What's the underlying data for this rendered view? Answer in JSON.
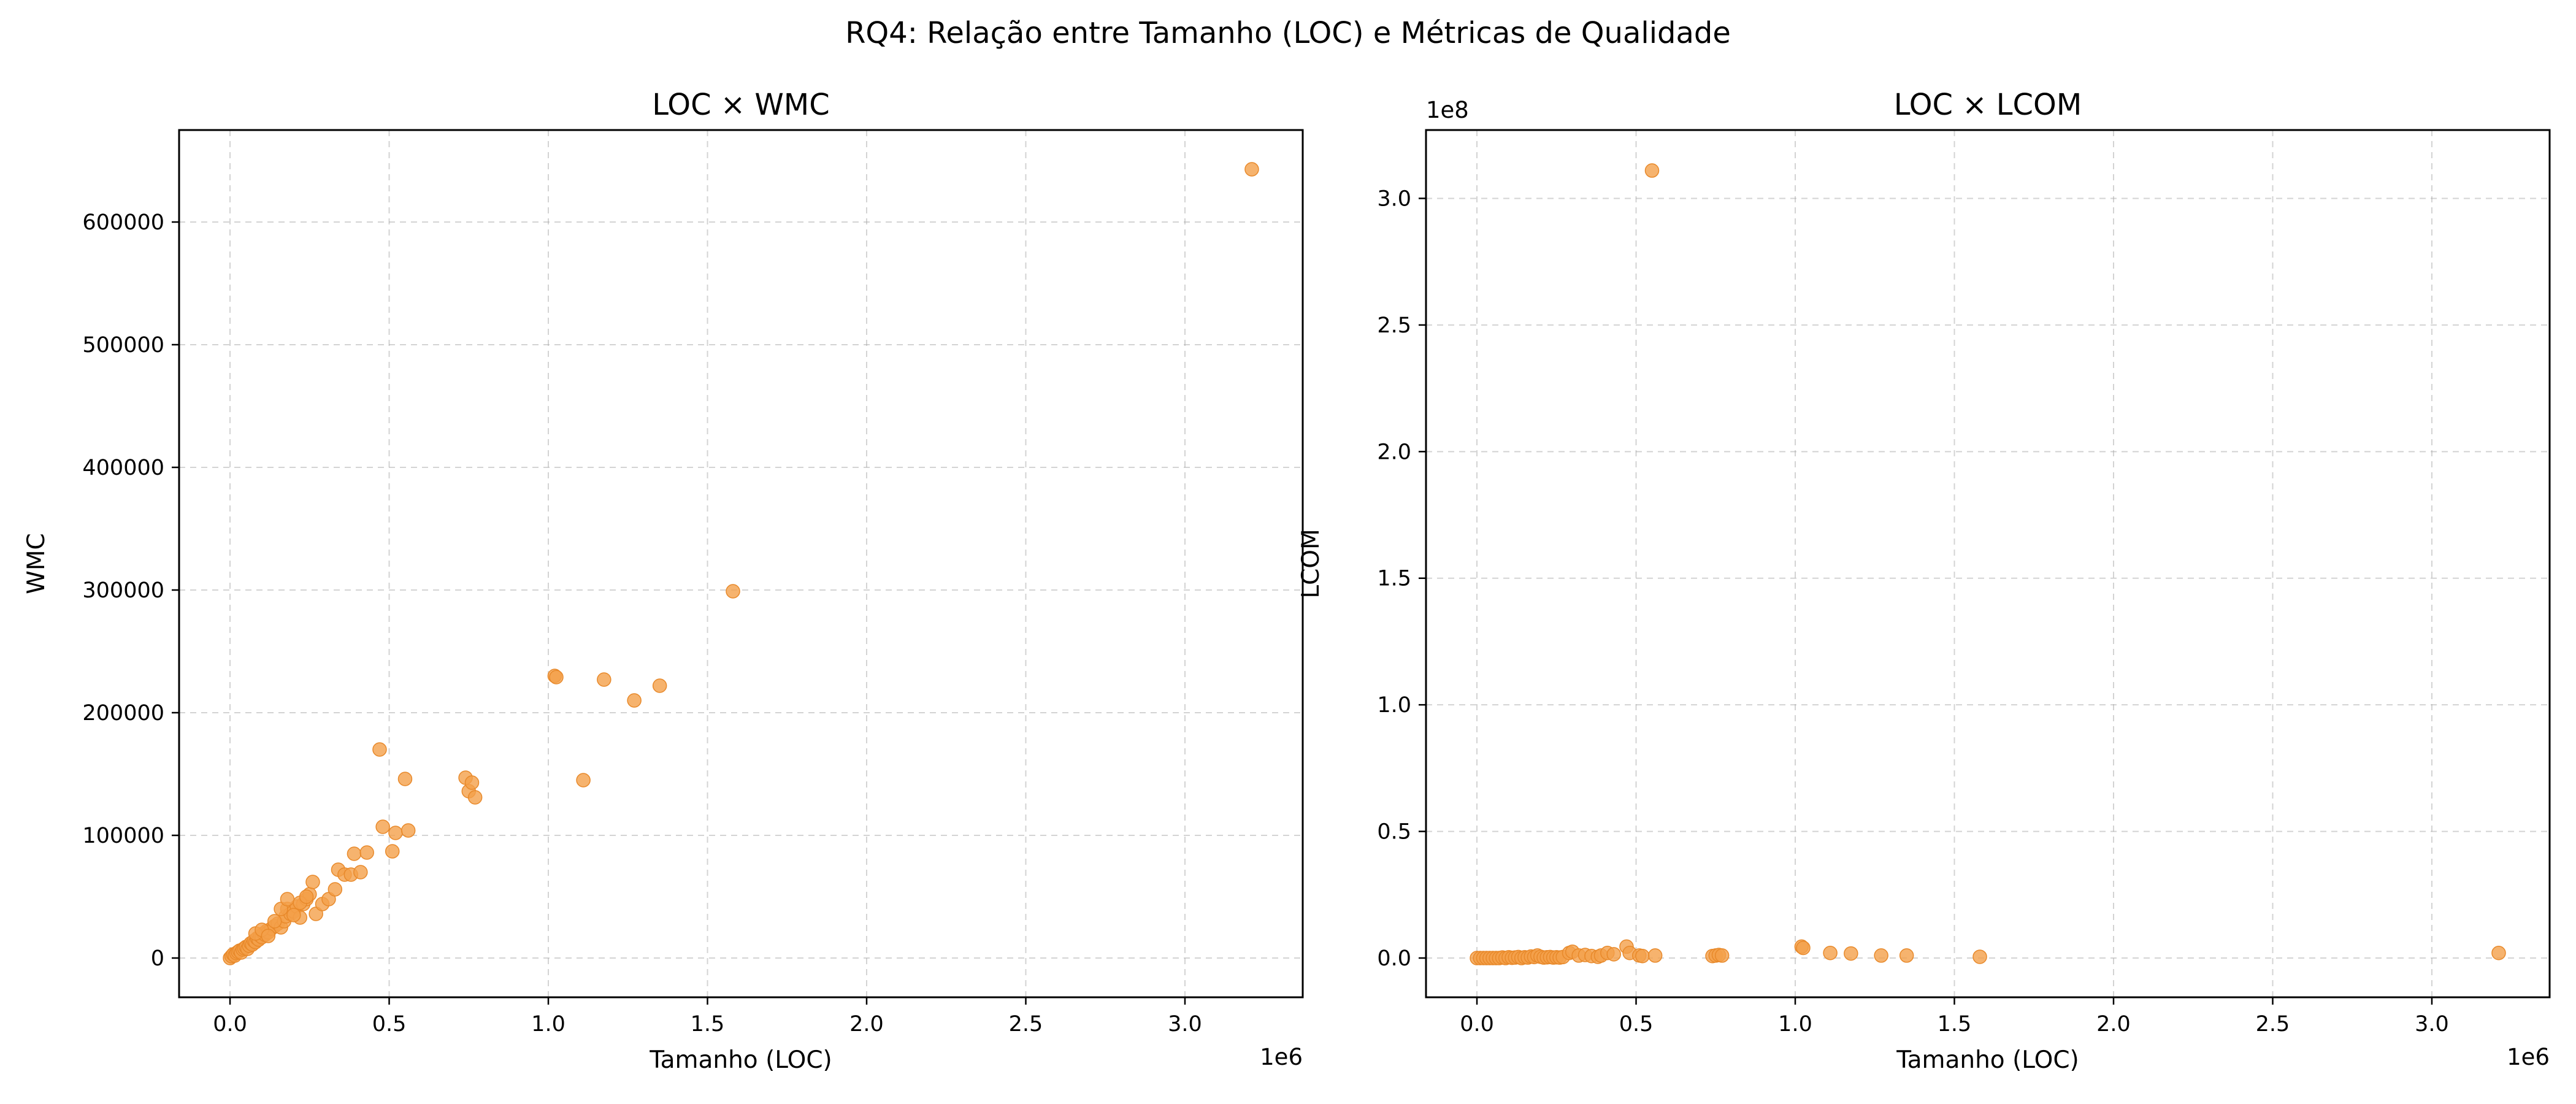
{
  "figure": {
    "suptitle": "RQ4: Relação entre Tamanho (LOC) e Métricas de Qualidade",
    "point_color": "#f4a04a",
    "point_edge": "#e8892a"
  },
  "chart_data": [
    {
      "type": "scatter",
      "title": "LOC × WMC",
      "xlabel": "Tamanho (LOC)",
      "ylabel": "WMC",
      "x_offset_label": "1e6",
      "y_offset_label": "",
      "xlim": [
        -0.16,
        3.37
      ],
      "ylim": [
        -32000,
        675000
      ],
      "xticks": [
        0.0,
        0.5,
        1.0,
        1.5,
        2.0,
        2.5,
        3.0
      ],
      "xtick_labels": [
        "0.0",
        "0.5",
        "1.0",
        "1.5",
        "2.0",
        "2.5",
        "3.0"
      ],
      "yticks": [
        0,
        100000,
        200000,
        300000,
        400000,
        500000,
        600000
      ],
      "ytick_labels": [
        "0",
        "100000",
        "200000",
        "300000",
        "400000",
        "500000",
        "600000"
      ],
      "grid": true,
      "points": [
        [
          0.0,
          0
        ],
        [
          0.005,
          1500
        ],
        [
          0.01,
          3000
        ],
        [
          0.015,
          2000
        ],
        [
          0.02,
          4000
        ],
        [
          0.025,
          5000
        ],
        [
          0.03,
          6000
        ],
        [
          0.035,
          4500
        ],
        [
          0.04,
          7000
        ],
        [
          0.045,
          8000
        ],
        [
          0.05,
          9000
        ],
        [
          0.055,
          7500
        ],
        [
          0.06,
          10000
        ],
        [
          0.065,
          12000
        ],
        [
          0.07,
          11000
        ],
        [
          0.075,
          14000
        ],
        [
          0.08,
          13000
        ],
        [
          0.085,
          16000
        ],
        [
          0.09,
          15000
        ],
        [
          0.095,
          18000
        ],
        [
          0.1,
          17000
        ],
        [
          0.105,
          20000
        ],
        [
          0.11,
          19000
        ],
        [
          0.115,
          22000
        ],
        [
          0.12,
          21000
        ],
        [
          0.13,
          24000
        ],
        [
          0.14,
          26000
        ],
        [
          0.15,
          28000
        ],
        [
          0.16,
          25000
        ],
        [
          0.17,
          30000
        ],
        [
          0.175,
          34000
        ],
        [
          0.18,
          40000
        ],
        [
          0.19,
          36000
        ],
        [
          0.2,
          38000
        ],
        [
          0.21,
          42000
        ],
        [
          0.22,
          33000
        ],
        [
          0.23,
          44000
        ],
        [
          0.24,
          48000
        ],
        [
          0.25,
          52000
        ],
        [
          0.26,
          62000
        ],
        [
          0.08,
          20000
        ],
        [
          0.1,
          23000
        ],
        [
          0.12,
          18000
        ],
        [
          0.14,
          30000
        ],
        [
          0.16,
          40000
        ],
        [
          0.18,
          48000
        ],
        [
          0.2,
          35000
        ],
        [
          0.22,
          45000
        ],
        [
          0.24,
          50000
        ],
        [
          0.27,
          36000
        ],
        [
          0.29,
          44000
        ],
        [
          0.31,
          48000
        ],
        [
          0.33,
          56000
        ],
        [
          0.34,
          72000
        ],
        [
          0.36,
          68000
        ],
        [
          0.38,
          68000
        ],
        [
          0.39,
          85000
        ],
        [
          0.41,
          70000
        ],
        [
          0.43,
          86000
        ],
        [
          0.47,
          170000
        ],
        [
          0.48,
          107000
        ],
        [
          0.51,
          87000
        ],
        [
          0.52,
          102000
        ],
        [
          0.55,
          146000
        ],
        [
          0.56,
          104000
        ],
        [
          0.74,
          147000
        ],
        [
          0.75,
          136000
        ],
        [
          0.76,
          143000
        ],
        [
          0.77,
          131000
        ],
        [
          1.02,
          230000
        ],
        [
          1.025,
          229000
        ],
        [
          1.11,
          145000
        ],
        [
          1.175,
          227000
        ],
        [
          1.27,
          210000
        ],
        [
          1.35,
          222000
        ],
        [
          1.58,
          299000
        ],
        [
          3.21,
          643000
        ]
      ]
    },
    {
      "type": "scatter",
      "title": "LOC × LCOM",
      "xlabel": "Tamanho (LOC)",
      "ylabel": "LCOM",
      "x_offset_label": "1e6",
      "y_offset_label": "1e8",
      "xlim": [
        -0.16,
        3.37
      ],
      "ylim": [
        -0.155,
        3.27
      ],
      "xticks": [
        0.0,
        0.5,
        1.0,
        1.5,
        2.0,
        2.5,
        3.0
      ],
      "xtick_labels": [
        "0.0",
        "0.5",
        "1.0",
        "1.5",
        "2.0",
        "2.5",
        "3.0"
      ],
      "yticks": [
        0.0,
        0.5,
        1.0,
        1.5,
        2.0,
        2.5,
        3.0
      ],
      "ytick_labels": [
        "0.0",
        "0.5",
        "1.0",
        "1.5",
        "2.0",
        "2.5",
        "3.0"
      ],
      "grid": true,
      "points": [
        [
          0.0,
          0.0
        ],
        [
          0.01,
          0.0
        ],
        [
          0.02,
          0.0
        ],
        [
          0.03,
          0.0
        ],
        [
          0.04,
          0.0
        ],
        [
          0.05,
          0.0
        ],
        [
          0.06,
          0.0
        ],
        [
          0.07,
          0.0
        ],
        [
          0.08,
          0.002
        ],
        [
          0.09,
          0.0
        ],
        [
          0.1,
          0.003
        ],
        [
          0.11,
          0.001
        ],
        [
          0.12,
          0.002
        ],
        [
          0.13,
          0.004
        ],
        [
          0.14,
          0.0
        ],
        [
          0.15,
          0.003
        ],
        [
          0.16,
          0.002
        ],
        [
          0.17,
          0.006
        ],
        [
          0.18,
          0.004
        ],
        [
          0.19,
          0.01
        ],
        [
          0.2,
          0.005
        ],
        [
          0.21,
          0.002
        ],
        [
          0.22,
          0.003
        ],
        [
          0.23,
          0.004
        ],
        [
          0.24,
          0.002
        ],
        [
          0.25,
          0.003
        ],
        [
          0.26,
          0.002
        ],
        [
          0.27,
          0.004
        ],
        [
          0.29,
          0.02
        ],
        [
          0.3,
          0.025
        ],
        [
          0.32,
          0.01
        ],
        [
          0.34,
          0.012
        ],
        [
          0.36,
          0.008
        ],
        [
          0.38,
          0.005
        ],
        [
          0.39,
          0.01
        ],
        [
          0.41,
          0.02
        ],
        [
          0.43,
          0.015
        ],
        [
          0.47,
          0.045
        ],
        [
          0.48,
          0.02
        ],
        [
          0.51,
          0.01
        ],
        [
          0.52,
          0.008
        ],
        [
          0.55,
          3.11
        ],
        [
          0.56,
          0.01
        ],
        [
          0.74,
          0.008
        ],
        [
          0.75,
          0.01
        ],
        [
          0.76,
          0.012
        ],
        [
          0.77,
          0.01
        ],
        [
          1.02,
          0.045
        ],
        [
          1.025,
          0.04
        ],
        [
          1.11,
          0.02
        ],
        [
          1.175,
          0.018
        ],
        [
          1.27,
          0.01
        ],
        [
          1.35,
          0.01
        ],
        [
          1.58,
          0.005
        ],
        [
          3.21,
          0.02
        ]
      ]
    }
  ]
}
